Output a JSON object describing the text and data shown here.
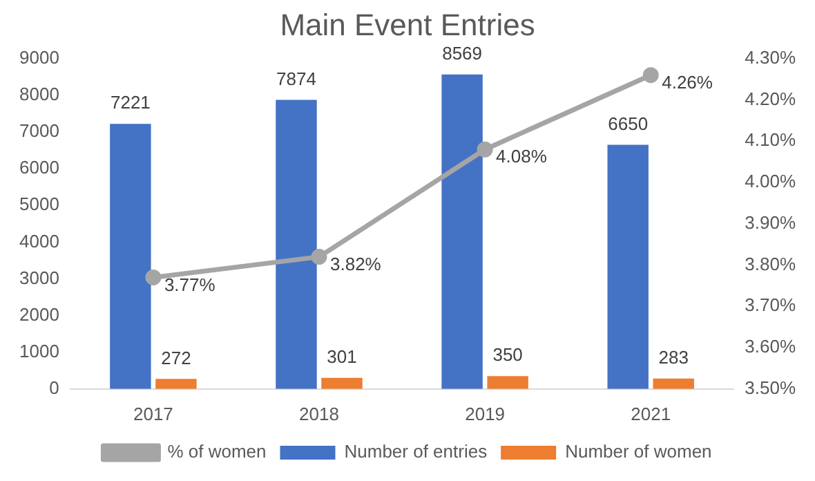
{
  "chart_data": {
    "type": "bar",
    "title": "Main Event Entries",
    "categories": [
      "2017",
      "2018",
      "2019",
      "2021"
    ],
    "series": [
      {
        "name": "Number of entries",
        "color": "#4472c4",
        "values": [
          7221,
          7874,
          8569,
          6650
        ],
        "value_labels": [
          "7221",
          "7874",
          "8569",
          "6650"
        ]
      },
      {
        "name": "Number of women",
        "color": "#ed7d31",
        "values": [
          272,
          301,
          350,
          283
        ],
        "value_labels": [
          "272",
          "301",
          "350",
          "283"
        ]
      },
      {
        "name": "% of women",
        "type": "line",
        "axis": "y2",
        "color": "#a5a5a5",
        "values": [
          3.77,
          3.82,
          4.08,
          4.26
        ],
        "value_labels": [
          "3.77%",
          "3.82%",
          "4.08%",
          "4.26%"
        ],
        "marker": "circle",
        "line_style": "solid"
      }
    ],
    "ylim": [
      0,
      9000
    ],
    "yticks": [
      0,
      1000,
      2000,
      3000,
      4000,
      5000,
      6000,
      7000,
      8000,
      9000
    ],
    "y2lim": [
      3.5,
      4.3
    ],
    "y2ticks": [
      {
        "value": 3.5,
        "label": "3.50%"
      },
      {
        "value": 3.6,
        "label": "3.60%"
      },
      {
        "value": 3.7,
        "label": "3.70%"
      },
      {
        "value": 3.8,
        "label": "3.80%"
      },
      {
        "value": 3.9,
        "label": "3.90%"
      },
      {
        "value": 4.0,
        "label": "4.00%"
      },
      {
        "value": 4.1,
        "label": "4.10%"
      },
      {
        "value": 4.2,
        "label": "4.20%"
      },
      {
        "value": 4.3,
        "label": "4.30%"
      }
    ],
    "legend": "bottom"
  }
}
